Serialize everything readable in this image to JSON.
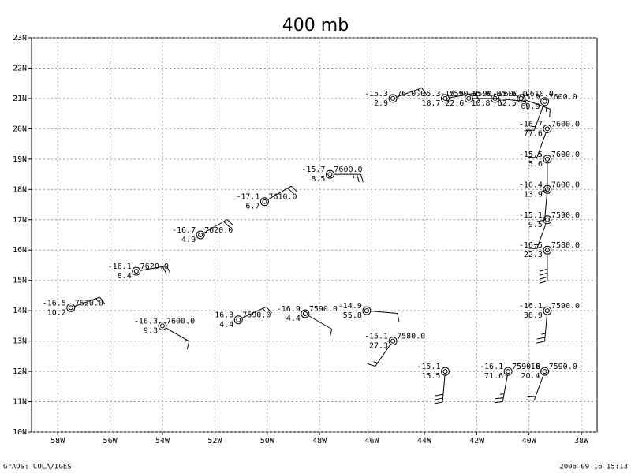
{
  "chart_data": {
    "type": "station_map",
    "title": "400 mb",
    "xlim": [
      -59,
      -37.4
    ],
    "ylim": [
      10,
      23
    ],
    "xticks": [
      {
        "value": -58,
        "label": "58W"
      },
      {
        "value": -56,
        "label": "56W"
      },
      {
        "value": -54,
        "label": "54W"
      },
      {
        "value": -52,
        "label": "52W"
      },
      {
        "value": -50,
        "label": "50W"
      },
      {
        "value": -48,
        "label": "48W"
      },
      {
        "value": -46,
        "label": "46W"
      },
      {
        "value": -44,
        "label": "44W"
      },
      {
        "value": -42,
        "label": "42W"
      },
      {
        "value": -40,
        "label": "40W"
      },
      {
        "value": -38,
        "label": "38W"
      }
    ],
    "yticks": [
      {
        "value": 10,
        "label": "10N"
      },
      {
        "value": 11,
        "label": "11N"
      },
      {
        "value": 12,
        "label": "12N"
      },
      {
        "value": 13,
        "label": "13N"
      },
      {
        "value": 14,
        "label": "14N"
      },
      {
        "value": 15,
        "label": "15N"
      },
      {
        "value": 16,
        "label": "16N"
      },
      {
        "value": 17,
        "label": "17N"
      },
      {
        "value": 18,
        "label": "18N"
      },
      {
        "value": 19,
        "label": "19N"
      },
      {
        "value": 20,
        "label": "20N"
      },
      {
        "value": 21,
        "label": "21N"
      },
      {
        "value": 22,
        "label": "22N"
      },
      {
        "value": 23,
        "label": "23N"
      }
    ],
    "grid": true,
    "stations": [
      {
        "lon": -57.5,
        "lat": 14.1,
        "t": -16.5,
        "dd": 10.2,
        "z": {
          "value": 7620,
          "label": "7620.0"
        },
        "wind": [
          70,
          15
        ]
      },
      {
        "lon": -55.0,
        "lat": 15.3,
        "t": -16.1,
        "dd": 8.4,
        "z": {
          "value": 7620,
          "label": "7620.0"
        },
        "wind": [
          80,
          20
        ]
      },
      {
        "lon": -54.0,
        "lat": 13.5,
        "t": -16.3,
        "dd": 9.3,
        "z": {
          "value": 7600,
          "label": "7600.0"
        },
        "wind": [
          120,
          15
        ]
      },
      {
        "lon": -52.55,
        "lat": 16.5,
        "t": -16.7,
        "dd": 4.9,
        "z": {
          "value": 7620,
          "label": "7620.0"
        },
        "wind": [
          60,
          20
        ]
      },
      {
        "lon": -51.1,
        "lat": 13.7,
        "t": -16.3,
        "dd": 4.4,
        "z": {
          "value": 7590,
          "label": "7590.0"
        },
        "wind": [
          65,
          15
        ]
      },
      {
        "lon": -50.1,
        "lat": 17.6,
        "t": -17.1,
        "dd": 6.7,
        "z": {
          "value": 7610,
          "label": "7610.0"
        },
        "wind": [
          60,
          20
        ]
      },
      {
        "lon": -48.55,
        "lat": 13.9,
        "t": -16.9,
        "dd": 4.4,
        "z": {
          "value": 7590,
          "label": "7590.0"
        },
        "wind": [
          120,
          10
        ]
      },
      {
        "lon": -47.6,
        "lat": 18.5,
        "t": -15.7,
        "dd": 8.5,
        "z": {
          "value": 7600,
          "label": "7600.0"
        },
        "wind": [
          90,
          25
        ]
      },
      {
        "lon": -46.2,
        "lat": 14.0,
        "t": -14.9,
        "dd": 55.8,
        "z": null,
        "wind": [
          95,
          10
        ]
      },
      {
        "lon": -45.2,
        "lat": 13.0,
        "t": -15.1,
        "dd": 27.3,
        "z": {
          "value": 7580,
          "label": "7580.0"
        },
        "wind": [
          215,
          15
        ]
      },
      {
        "lon": -45.2,
        "lat": 21.0,
        "t": -15.3,
        "dd": 2.9,
        "z": {
          "value": 7610,
          "label": "7610.0"
        },
        "wind": [
          70,
          15
        ]
      },
      {
        "lon": -43.2,
        "lat": 12.0,
        "t": -15.1,
        "dd": 15.5,
        "z": null,
        "wind": [
          185,
          30
        ]
      },
      {
        "lon": -43.2,
        "lat": 21.0,
        "t": -15.3,
        "dd": 18.7,
        "z": {
          "value": 7590,
          "label": "7590.0"
        },
        "wind": [
          80,
          10
        ]
      },
      {
        "lon": -42.3,
        "lat": 21.0,
        "t": -15.5,
        "dd": 22.6,
        "z": {
          "value": 7590,
          "label": "7590.0"
        },
        "wind": [
          90,
          10
        ]
      },
      {
        "lon": -41.3,
        "lat": 21.0,
        "t": -15.8,
        "dd": 10.8,
        "z": {
          "value": 7600,
          "label": "7600.0"
        },
        "wind": [
          95,
          10
        ]
      },
      {
        "lon": -40.3,
        "lat": 21.0,
        "t": -15.5,
        "dd": 62.5,
        "z": {
          "value": 7610,
          "label": "7610.0"
        },
        "wind": [
          110,
          15
        ]
      },
      {
        "lon": -39.4,
        "lat": 20.9,
        "t": -15.9,
        "dd": 69.9,
        "z": {
          "value": 7600,
          "label": "7600.0"
        },
        "wind": [
          200,
          15
        ]
      },
      {
        "lon": -39.3,
        "lat": 20.0,
        "t": -16.7,
        "dd": 77.6,
        "z": {
          "value": 7600,
          "label": "7600.0"
        },
        "wind": [
          200,
          10
        ]
      },
      {
        "lon": -39.3,
        "lat": 19.0,
        "t": -15.5,
        "dd": 5.6,
        "z": {
          "value": 7600,
          "label": "7600.0"
        },
        "wind": [
          180,
          10
        ]
      },
      {
        "lon": -39.3,
        "lat": 18.0,
        "t": -16.4,
        "dd": 13.9,
        "z": {
          "value": 7600,
          "label": "7600.0"
        },
        "wind": [
          185,
          10
        ]
      },
      {
        "lon": -39.3,
        "lat": 17.0,
        "t": -15.1,
        "dd": 9.5,
        "z": {
          "value": 7590,
          "label": "7590.0"
        },
        "wind": [
          200,
          15
        ]
      },
      {
        "lon": -39.3,
        "lat": 16.0,
        "t": -16.5,
        "dd": 22.3,
        "z": {
          "value": 7580,
          "label": "7580.0"
        },
        "wind": [
          180,
          40
        ]
      },
      {
        "lon": -39.3,
        "lat": 14.0,
        "t": -16.1,
        "dd": 38.9,
        "z": {
          "value": 7590,
          "label": "7590.0"
        },
        "wind": [
          185,
          25
        ]
      },
      {
        "lon": -40.8,
        "lat": 12.0,
        "t": -16.1,
        "dd": 71.6,
        "z": {
          "value": 7590,
          "label": "7590.0"
        },
        "wind": [
          190,
          25
        ]
      },
      {
        "lon": -39.4,
        "lat": 12.0,
        "t": -16.0,
        "dd": 20.4,
        "z": {
          "value": 7590,
          "label": "7590.0"
        },
        "wind": [
          200,
          20
        ]
      }
    ],
    "footer_left": "GrADS: COLA/IGES",
    "footer_right": "2006-09-16-15:13"
  }
}
